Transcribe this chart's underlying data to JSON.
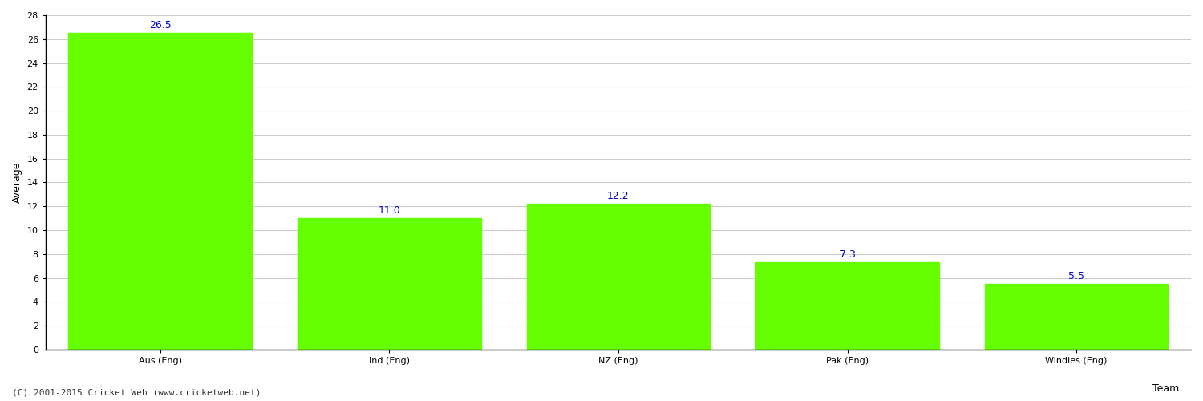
{
  "categories": [
    "Aus (Eng)",
    "Ind (Eng)",
    "NZ (Eng)",
    "Pak (Eng)",
    "Windies (Eng)"
  ],
  "values": [
    26.5,
    11.0,
    12.2,
    7.3,
    5.5
  ],
  "bar_color": "#66ff00",
  "bar_edge_color": "#66ff00",
  "value_label_color": "#0000cc",
  "value_label_fontsize": 9,
  "xlabel": "Team",
  "ylabel": "Average",
  "ylim": [
    0,
    28
  ],
  "yticks": [
    0,
    2,
    4,
    6,
    8,
    10,
    12,
    14,
    16,
    18,
    20,
    22,
    24,
    26,
    28
  ],
  "grid_color": "#cccccc",
  "background_color": "#ffffff",
  "axis_label_fontsize": 9,
  "tick_fontsize": 8,
  "xlabel_fontsize": 9,
  "footer_text": "(C) 2001-2015 Cricket Web (www.cricketweb.net)",
  "footer_fontsize": 8,
  "footer_color": "#333333"
}
